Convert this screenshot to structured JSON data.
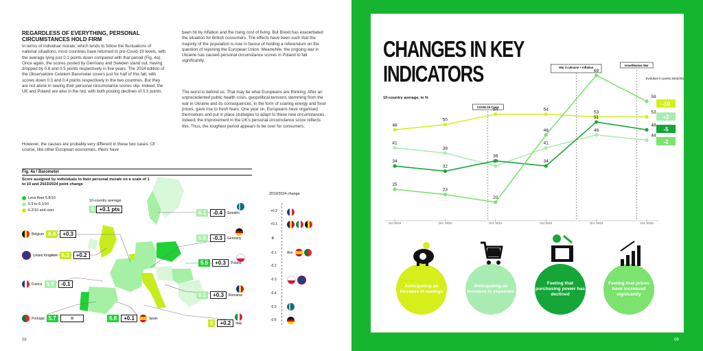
{
  "left": {
    "heading": "REGARDLESS OF EVERYTHING, PERSONAL CIRCUMSTANCES HOLD FIRM",
    "col1_p1": "In terms of individual morale, which tends to follow the fluctuations of national situations, most countries have returned to pre-Covid-19 levels, with the average lying just 0.1 points down compared with that period (Fig. 4a). Once again, the scores posted by Germany and Sweden stand out, having dropped by 0.6 and 0.5 points respectively in five years. The 2024 edition of the Observatoire Cetelem Barometer covers just for half of this fall, with scores down 0.3 and 0.4 points respectively in the two countries. But they are not alone in seeing their personal circumstance scores slip. Indeed, the UK and Poland are also in the red, with both posting declines of 0.3 points.",
    "col1_p2": "However, the causes are probably very different in these two cases. Of course, like other European economies, theirs have",
    "col2_p1": "been hit by inflation and the rising cost of living. But Brexit has exacerbated the situation for British consumers. The effects have been such that the majority of the population is now in favour of holding a referendum on the question of rejoining the European Union. Meanwhile, the ongoing war in Ukraine has caused personal circumstance scores in Poland to fall significantly.",
    "col2_p2": "The worst is behind us. That may be what Europeans are thinking. After an unprecedented public health crisis, geopolitical tensions stemming from the war in Ukraine and its consequences, in the form of soaring energy and food prices, gave rise to fresh fears. One year on, Europeans have organised themselves and put in place strategies to adapt to these new circumstances. Indeed, the improvement in the UK's personal circumstance score reflects this. Thus, the toughest period appears to be over for consumers.",
    "fig_tag": "Fig. 4a / Barometer",
    "fig_sub": "Score assigned by individuals to their personal morale on a scale of 1 to 10 and 2023/2024 point change",
    "legend": [
      "Less than 5.8/10",
      "5.9 to 6.1/10",
      "6.2/10 and over"
    ],
    "avg_label": "10-country average",
    "avg": {
      "score": "6",
      "change": "+0.1 pts"
    },
    "countries": [
      {
        "name": "Belgium",
        "score": "6.4",
        "change": "+0.3"
      },
      {
        "name": "United Kingdom",
        "score": "6.3",
        "change": "+0.2"
      },
      {
        "name": "France",
        "score": "5.9",
        "change": "-0.1"
      },
      {
        "name": "Portugal",
        "score": "5.7",
        "change": "="
      },
      {
        "name": "Spain",
        "score": "5.8",
        "change": "+0.1"
      },
      {
        "name": "Sweden",
        "score": "6.1",
        "change": "-0.4"
      },
      {
        "name": "Germany",
        "score": "5.9",
        "change": "-0.3"
      },
      {
        "name": "Poland",
        "score": "5.5",
        "change": "+0.3"
      },
      {
        "name": "Romania",
        "score": "6.1",
        "change": "+0.3"
      },
      {
        "name": "Italy",
        "score": "6",
        "change": "+0.2"
      }
    ],
    "scale_title": "2019/2024 change",
    "scale_ticks": [
      "+0.2",
      "+0.1",
      "0",
      "-0.1",
      "-0.2",
      "-0.3",
      "-0.4",
      "-0.5",
      "-0.6"
    ],
    "scale_avg": "Ave.",
    "page_number": "08"
  },
  "right": {
    "title_line1": "CHANGES IN KEY",
    "title_line2": "INDICATORS",
    "chart_sub": "10-country average, in %",
    "page_number": "09",
    "circles": [
      {
        "label": "Anticipating an increase in savings",
        "icon": "piggy-bank-icon"
      },
      {
        "label": "Anticipating an increase in expenses",
        "icon": "shopping-cart-icon"
      },
      {
        "label": "Feeling that purchasing power has declined",
        "icon": "wallet-down-icon"
      },
      {
        "label": "Feeling that prices have increased signicantly",
        "icon": "bar-chart-up-icon"
      }
    ]
  },
  "chart_data": {
    "type": "line",
    "x": [
      "Oct 2019",
      "Oct. 2020",
      "Oct. 2021",
      "Oct 2022",
      "Oct. 2023",
      "Oct. 2024"
    ],
    "ylabel": "10-country average, in %",
    "series": [
      {
        "name": "Anticipating an increase in savings",
        "color": "#d6ef1b",
        "values": [
          48,
          50,
          54,
          54,
          53,
          53
        ]
      },
      {
        "name": "Anticipating an increase in expenses",
        "color": "#a9ecb1",
        "values": [
          41,
          39,
          34,
          41,
          46,
          44
        ]
      },
      {
        "name": "Feeling that purchasing power has declined",
        "color": "#16a638",
        "values": [
          34,
          32,
          36,
          34,
          51,
          48
        ]
      },
      {
        "name": "Feeling that prices have increased signicantly",
        "color": "#7be36e",
        "values": [
          25,
          23,
          20,
          46,
          69,
          59
        ]
      }
    ],
    "evolution": {
      "title": "Evolution in points 2023/2024",
      "values": [
        "-10",
        "+2",
        "-5",
        "-2"
      ]
    },
    "annotations": [
      "COVID-19 Crisis",
      "War in Ukraine + Inflation",
      "Israel/Hamas War"
    ]
  }
}
